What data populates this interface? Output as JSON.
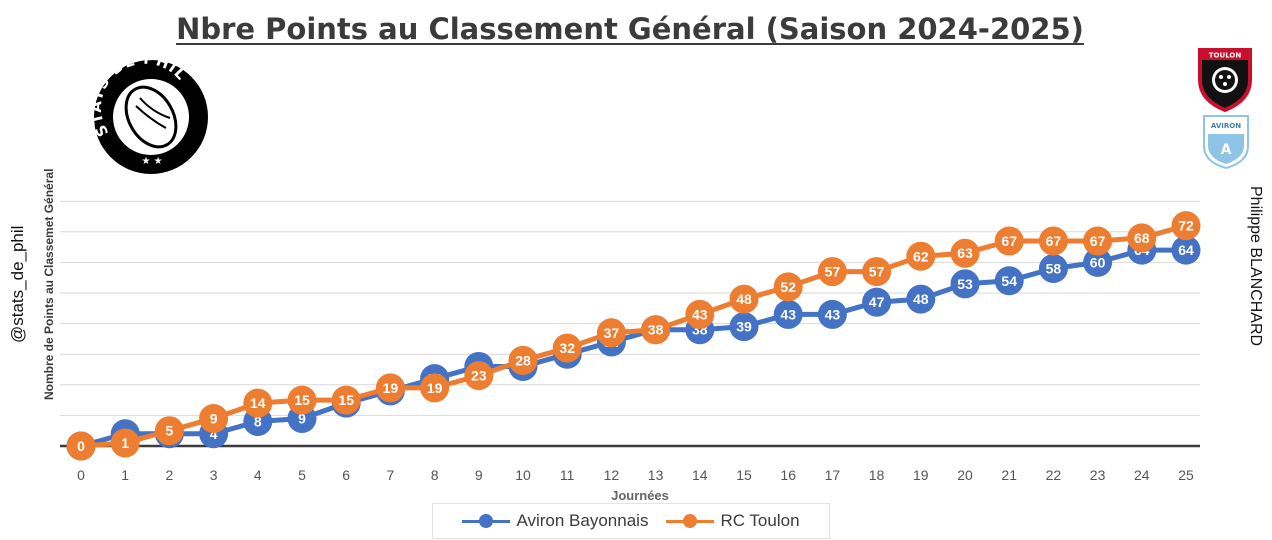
{
  "title": "Nbre Points au Classement Général (Saison 2024-2025)",
  "left_handle": "@stats_de_phil",
  "right_credit": "Philippe BLANCHARD",
  "logos": {
    "stats_badge_text": "STATS DE PHIL",
    "toulon_text": "TOULON",
    "aviron_text": "AVIRON"
  },
  "colors": {
    "aviron": "#4472C4",
    "toulon": "#ED7D31",
    "grid": "#d9d9d9",
    "axis": "#3b3b3b"
  },
  "chart_data": {
    "type": "line",
    "title": "Nbre Points au Classement Général (Saison 2024-2025)",
    "xlabel": "Journées",
    "ylabel": "Nombre de Points au Classemet Général",
    "x": [
      0,
      1,
      2,
      3,
      4,
      5,
      6,
      7,
      8,
      9,
      10,
      11,
      12,
      13,
      14,
      15,
      16,
      17,
      18,
      19,
      20,
      21,
      22,
      23,
      24,
      25
    ],
    "ylim": [
      0,
      80
    ],
    "grid": true,
    "legend": "bottom",
    "series": [
      {
        "name": "Aviron Bayonnais",
        "color": "#4472C4",
        "values": [
          0,
          4,
          4,
          4,
          8,
          9,
          14,
          18,
          22,
          26,
          26,
          30,
          34,
          38,
          38,
          39,
          43,
          43,
          47,
          48,
          53,
          54,
          58,
          60,
          64,
          64
        ]
      },
      {
        "name": "RC Toulon",
        "color": "#ED7D31",
        "values": [
          0,
          1,
          5,
          9,
          14,
          15,
          15,
          19,
          19,
          23,
          28,
          32,
          37,
          38,
          43,
          48,
          52,
          57,
          57,
          62,
          63,
          67,
          67,
          67,
          68,
          72
        ]
      }
    ]
  }
}
